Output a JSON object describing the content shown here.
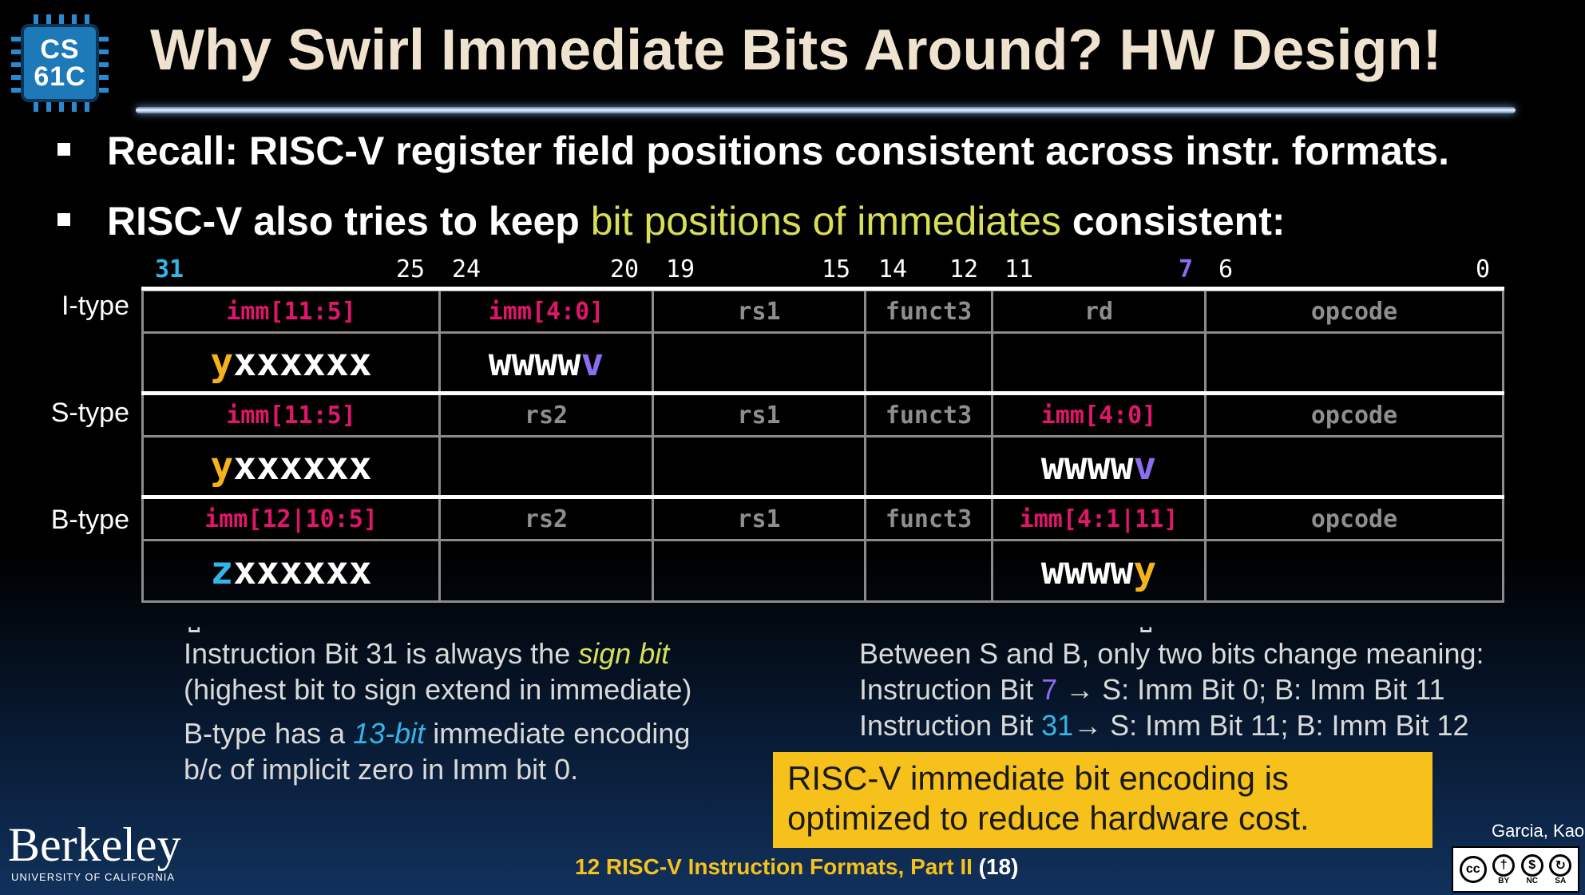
{
  "logo": {
    "line1": "CS",
    "line2": "61C"
  },
  "title": "Why Swirl Immediate Bits Around? HW Design!",
  "bullets": [
    {
      "text": "Recall: RISC-V register field positions consistent across instr. formats."
    },
    {
      "pre": "RISC-V also tries to keep ",
      "highlight": "bit positions of immediates",
      "post": " consistent:"
    }
  ],
  "bit_numbers": {
    "b31": "31",
    "b25": "25",
    "b24": "24",
    "b20": "20",
    "b19": "19",
    "b15": "15",
    "b14": "14",
    "b12": "12",
    "b11": "11",
    "b7": "7",
    "b6": "6",
    "b0": "0"
  },
  "colors": {
    "imm_header": "#e0166b",
    "y": "#f7b21b",
    "v": "#8c6cf0",
    "z": "#33b5e8",
    "highlight": "#d8df57",
    "callout": "#f7c11b"
  },
  "formats": [
    {
      "label": "I-type",
      "headers": [
        "imm[11:5]",
        "imm[4:0]",
        "rs1",
        "funct3",
        "rd",
        "opcode"
      ],
      "imm_header_flags": [
        true,
        true,
        false,
        false,
        false,
        false
      ],
      "val1_prefix": "y",
      "val1_rest": "xxxxxx",
      "val2_prefix": "wwww",
      "val2_last": "v"
    },
    {
      "label": "S-type",
      "headers": [
        "imm[11:5]",
        "rs2",
        "rs1",
        "funct3",
        "imm[4:0]",
        "opcode"
      ],
      "val1_prefix": "y",
      "val1_rest": "xxxxxx",
      "val5_prefix": "wwww",
      "val5_last": "v"
    },
    {
      "label": "B-type",
      "headers": [
        "imm[12|10:5]",
        "rs2",
        "rs1",
        "funct3",
        "imm[4:1|11]",
        "opcode"
      ],
      "val1_prefix": "z",
      "val1_rest": "xxxxxx",
      "val5_prefix": "wwww",
      "val5_last": "y"
    }
  ],
  "notes_left": {
    "l1_pre": "Instruction Bit 31 is always the ",
    "l1_em": "sign bit",
    "l2": "(highest bit to sign extend in immediate)",
    "l3_pre": "B-type has a ",
    "l3_em": "13-bit",
    "l3_post": " immediate encoding",
    "l4": "b/c of implicit zero in Imm bit 0."
  },
  "notes_right": {
    "l1": "Between S and B, only two bits change meaning:",
    "l2_pre": "Instruction Bit ",
    "l2_num": "7",
    "l2_post": " →  S: Imm Bit 0;  B: Imm Bit 11",
    "l3_pre": "Instruction Bit ",
    "l3_num": "31",
    "l3_post": "→ S: Imm Bit 11; B: Imm Bit 12"
  },
  "callout": {
    "line1": "RISC-V immediate bit encoding is",
    "line2": "optimized to reduce hardware cost."
  },
  "footer": {
    "text": "12 RISC-V Instruction Formats, Part II ",
    "page": "(18)"
  },
  "branding": {
    "berkeley": "Berkeley",
    "berkeley_sub": "UNIVERSITY OF CALIFORNIA",
    "authors": "Garcia, Kao",
    "license_labels": [
      "BY",
      "NC",
      "SA"
    ]
  }
}
